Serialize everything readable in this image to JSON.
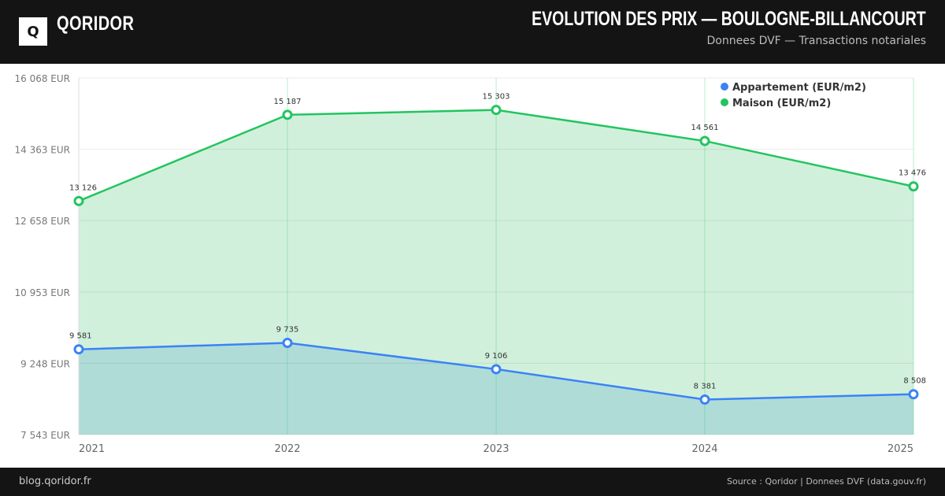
{
  "header": {
    "logo": "Q",
    "brand": "QORIDOR",
    "title": "EVOLUTION DES PRIX — BOULOGNE-BILLANCOURT",
    "subtitle": "Donnees DVF — Transactions notariales"
  },
  "footer": {
    "left": "blog.qoridor.fr",
    "right": "Source : Qoridor | Donnees DVF (data.gouv.fr)"
  },
  "chart_data": {
    "type": "area",
    "title": "EVOLUTION DES PRIX — BOULOGNE-BILLANCOURT",
    "categories": [
      "2021",
      "2022",
      "2023",
      "2024",
      "2025"
    ],
    "series": [
      {
        "name": "Appartement (EUR/m2)",
        "color": "#3b82f6",
        "fill": "#b0dcd8",
        "values": [
          9581,
          9735,
          9106,
          8381,
          8508
        ],
        "labels": [
          "9 581",
          "9 735",
          "9 106",
          "8 381",
          "8 508"
        ]
      },
      {
        "name": "Maison (EUR/m2)",
        "color": "#22c55e",
        "fill": "#d1f0dc",
        "values": [
          13126,
          15187,
          15303,
          14561,
          13476
        ],
        "labels": [
          "13 126",
          "15 187",
          "15 303",
          "14 561",
          "13 476"
        ]
      }
    ],
    "yticks": [
      "7 543 EUR",
      "9 248 EUR",
      "10 953 EUR",
      "12 658 EUR",
      "14 363 EUR",
      "16 068 EUR"
    ],
    "ylim": [
      7543,
      16068
    ],
    "legend": "top-right",
    "grid": true
  }
}
